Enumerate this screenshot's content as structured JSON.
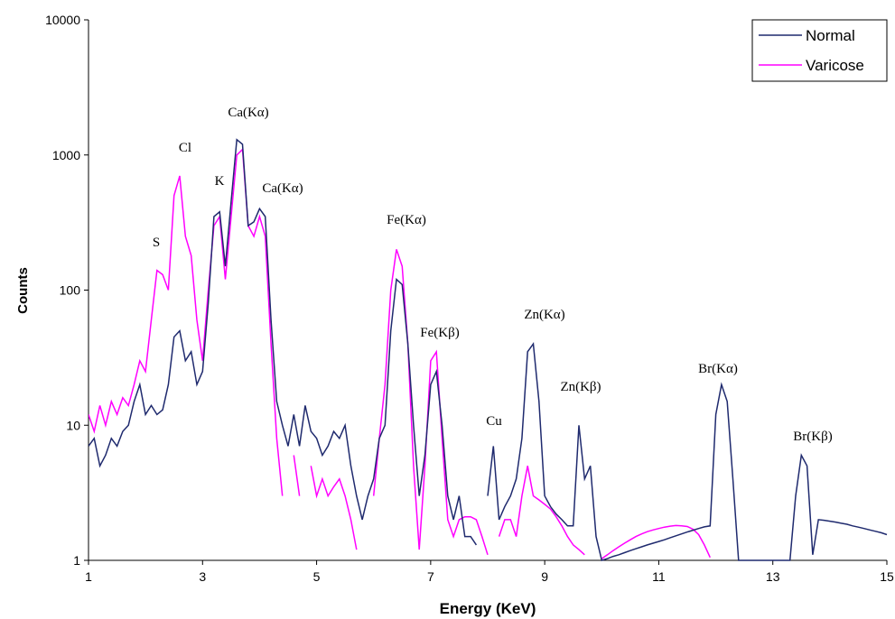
{
  "chart_data": {
    "type": "line",
    "xlabel": "Energy (KeV)",
    "ylabel": "Counts",
    "log_y": true,
    "legend": "upper right",
    "xlim": [
      1,
      15
    ],
    "xticks": [
      1,
      3,
      5,
      7,
      9,
      11,
      13,
      15
    ],
    "ylim": [
      1,
      10000
    ],
    "yticks": [
      1,
      10,
      100,
      1000,
      10000
    ],
    "x": [
      1,
      1.1,
      1.2,
      1.3,
      1.4,
      1.5,
      1.6,
      1.7,
      1.8,
      1.9,
      2,
      2.1,
      2.2,
      2.3,
      2.4,
      2.5,
      2.6,
      2.7,
      2.8,
      2.9,
      3,
      3.1,
      3.2,
      3.3,
      3.4,
      3.5,
      3.6,
      3.7,
      3.8,
      3.9,
      4,
      4.1,
      4.2,
      4.3,
      4.4,
      4.5,
      4.6,
      4.7,
      4.8,
      4.9,
      5,
      5.1,
      5.2,
      5.3,
      5.4,
      5.5,
      5.6,
      5.7,
      5.8,
      5.9,
      6,
      6.1,
      6.2,
      6.3,
      6.4,
      6.5,
      6.6,
      6.7,
      6.8,
      6.9,
      7,
      7.1,
      7.2,
      7.3,
      7.4,
      7.5,
      7.6,
      7.7,
      7.8,
      7.9,
      8,
      8.1,
      8.2,
      8.3,
      8.4,
      8.5,
      8.6,
      8.7,
      8.8,
      8.9,
      9,
      9.1,
      9.2,
      9.3,
      9.4,
      9.5,
      9.6,
      9.7,
      9.8,
      9.9,
      10,
      10.1,
      10.2,
      10.3,
      10.4,
      10.5,
      10.6,
      10.7,
      10.8,
      10.9,
      11,
      11.1,
      11.2,
      11.3,
      11.4,
      11.5,
      11.6,
      11.7,
      11.8,
      11.9,
      12,
      12.1,
      12.2,
      12.3,
      12.4,
      12.5,
      12.6,
      12.7,
      12.8,
      12.9,
      13,
      13.1,
      13.2,
      13.3,
      13.4,
      13.5,
      13.6,
      13.7,
      13.8,
      13.9,
      14,
      14.1,
      14.2,
      14.3,
      14.4,
      14.5,
      14.6,
      14.7,
      14.8,
      14.9,
      15
    ],
    "series": [
      {
        "name": "Normal",
        "color": "#1f2a6e",
        "values": [
          7,
          8,
          5,
          6,
          8,
          7,
          9,
          10,
          15,
          20,
          12,
          14,
          12,
          13,
          20,
          45,
          50,
          30,
          35,
          20,
          25,
          80,
          350,
          380,
          150,
          450,
          1300,
          1200,
          300,
          320,
          400,
          350,
          60,
          15,
          10,
          7,
          12,
          7,
          14,
          9,
          8,
          6,
          7,
          9,
          8,
          10,
          5,
          3,
          2,
          3,
          4,
          8,
          10,
          50,
          120,
          110,
          40,
          10,
          3,
          6,
          20,
          25,
          10,
          3,
          2,
          3,
          1.5,
          1.5,
          1.3,
          null,
          3,
          7,
          2,
          2.5,
          3,
          4,
          8,
          35,
          40,
          15,
          3,
          2.5,
          2.2,
          2,
          1.8,
          1.8,
          10,
          4,
          5,
          1.5,
          1,
          1.03,
          1.07,
          1.1,
          1.14,
          1.18,
          1.22,
          1.26,
          1.3,
          1.34,
          1.38,
          1.42,
          1.47,
          1.52,
          1.57,
          1.62,
          1.67,
          1.72,
          1.77,
          1.8,
          12,
          20,
          15,
          4,
          1,
          1,
          1,
          1,
          1,
          1,
          1,
          1,
          1,
          1,
          3,
          6,
          5,
          1.1,
          2,
          1.98,
          1.95,
          1.92,
          1.88,
          1.85,
          1.8,
          1.76,
          1.72,
          1.68,
          1.64,
          1.6,
          1.55
        ]
      },
      {
        "name": "Varicose",
        "color": "#ff00ff",
        "values": [
          12,
          9,
          14,
          10,
          15,
          12,
          16,
          14,
          20,
          30,
          25,
          60,
          140,
          130,
          100,
          500,
          700,
          250,
          180,
          60,
          30,
          100,
          300,
          350,
          120,
          350,
          1000,
          1100,
          300,
          250,
          350,
          250,
          40,
          8,
          3,
          null,
          6,
          3,
          null,
          5,
          3,
          4,
          3,
          3.5,
          4,
          3,
          2,
          1.2,
          null,
          null,
          3,
          8,
          20,
          100,
          200,
          150,
          40,
          5,
          1.2,
          5,
          30,
          35,
          8,
          2,
          1.5,
          2,
          2.1,
          2.1,
          2,
          1.5,
          1.1,
          null,
          1.5,
          2,
          2,
          1.5,
          3,
          5,
          3,
          2.8,
          2.6,
          2.4,
          2.1,
          1.8,
          1.5,
          1.3,
          1.2,
          1.1,
          null,
          null,
          1.03,
          1.1,
          1.18,
          1.26,
          1.34,
          1.42,
          1.5,
          1.57,
          1.63,
          1.68,
          1.72,
          1.76,
          1.79,
          1.81,
          1.8,
          1.78,
          1.7,
          1.55,
          1.3,
          1.05,
          null,
          null,
          null,
          null,
          null,
          null,
          null,
          null,
          null,
          null,
          null,
          null,
          null,
          null,
          null,
          null,
          null,
          null,
          null,
          null,
          null,
          null,
          null,
          null,
          null,
          null,
          null,
          null,
          null,
          null,
          null
        ]
      }
    ],
    "annotations": [
      "S",
      "Cl",
      "K",
      "Ca(Kα)",
      "Ca(Kα)",
      "Fe(Kα)",
      "Fe(Kβ)",
      "Cu",
      "Zn(Kα)",
      "Zn(Kβ)",
      "Br(Kα)",
      "Br(Kβ)"
    ]
  }
}
